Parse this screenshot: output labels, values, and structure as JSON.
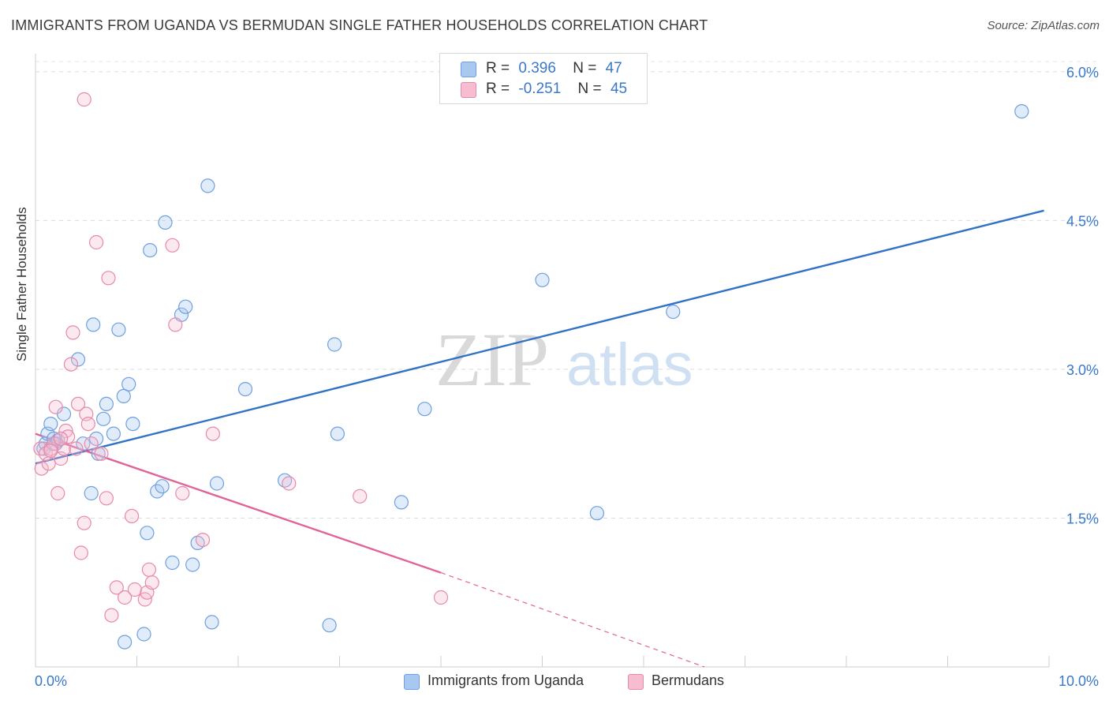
{
  "title": "IMMIGRANTS FROM UGANDA VS BERMUDAN SINGLE FATHER HOUSEHOLDS CORRELATION CHART",
  "source": "Source: ZipAtlas.com",
  "watermark": {
    "zip": "ZIP",
    "atlas": "atlas"
  },
  "legend_top": {
    "rows": [
      {
        "r_label": "R =",
        "r_value": "0.396",
        "n_label": "N =",
        "n_value": "47",
        "color": "#a9c8f0",
        "border": "#6f9fdc"
      },
      {
        "r_label": "R =",
        "r_value": "-0.251",
        "n_label": "N =",
        "n_value": "45",
        "color": "#f6bdd0",
        "border": "#e58aab"
      }
    ]
  },
  "legend_bottom": [
    {
      "label": "Immigrants from Uganda",
      "color": "#a9c8f0",
      "border": "#6f9fdc"
    },
    {
      "label": "Bermudans",
      "color": "#f6bdd0",
      "border": "#e58aab"
    }
  ],
  "chart_data": {
    "type": "scatter",
    "title": "IMMIGRANTS FROM UGANDA VS BERMUDAN SINGLE FATHER HOUSEHOLDS CORRELATION CHART",
    "xlabel": "",
    "ylabel": "Single Father Households",
    "xlim": [
      0,
      10
    ],
    "ylim": [
      0,
      6.15
    ],
    "x_tick_labels": [
      "0.0%",
      "10.0%"
    ],
    "y_tick_labels": [
      "1.5%",
      "3.0%",
      "4.5%",
      "6.0%"
    ],
    "y_ticks": [
      1.5,
      3.0,
      4.5,
      6.0
    ],
    "grid": true,
    "legend_position": "top-center",
    "series": [
      {
        "name": "Immigrants from Uganda",
        "color": "#6f9fdc",
        "fill": "rgba(169,200,240,0.35)",
        "line_color": "#2f72c8",
        "trend": [
          [
            0.0,
            2.05
          ],
          [
            9.95,
            4.6
          ]
        ],
        "points": [
          [
            0.08,
            2.2
          ],
          [
            0.1,
            2.25
          ],
          [
            0.12,
            2.35
          ],
          [
            0.15,
            2.45
          ],
          [
            0.18,
            2.3
          ],
          [
            0.2,
            2.25
          ],
          [
            0.22,
            2.28
          ],
          [
            0.28,
            2.55
          ],
          [
            0.42,
            3.1
          ],
          [
            0.47,
            2.25
          ],
          [
            0.55,
            1.75
          ],
          [
            0.57,
            3.45
          ],
          [
            0.6,
            2.3
          ],
          [
            0.62,
            2.15
          ],
          [
            0.67,
            2.5
          ],
          [
            0.7,
            2.65
          ],
          [
            0.77,
            2.35
          ],
          [
            0.82,
            3.4
          ],
          [
            0.87,
            2.73
          ],
          [
            0.92,
            2.85
          ],
          [
            0.96,
            2.45
          ],
          [
            0.88,
            0.25
          ],
          [
            1.07,
            0.33
          ],
          [
            1.1,
            1.35
          ],
          [
            1.13,
            4.2
          ],
          [
            1.2,
            1.77
          ],
          [
            1.25,
            1.82
          ],
          [
            1.28,
            4.48
          ],
          [
            1.35,
            1.05
          ],
          [
            1.44,
            3.55
          ],
          [
            1.48,
            3.63
          ],
          [
            1.55,
            1.03
          ],
          [
            1.6,
            1.25
          ],
          [
            1.7,
            4.85
          ],
          [
            1.74,
            0.45
          ],
          [
            1.79,
            1.85
          ],
          [
            2.07,
            2.8
          ],
          [
            2.46,
            1.88
          ],
          [
            2.9,
            0.42
          ],
          [
            2.95,
            3.25
          ],
          [
            2.98,
            2.35
          ],
          [
            3.61,
            1.66
          ],
          [
            3.84,
            2.6
          ],
          [
            5.0,
            3.9
          ],
          [
            5.54,
            1.55
          ],
          [
            6.29,
            3.58
          ],
          [
            9.73,
            5.6
          ]
        ]
      },
      {
        "name": "Bermudans",
        "color": "#e58aab",
        "fill": "rgba(246,189,208,0.35)",
        "line_color": "#e0649a",
        "trend": [
          [
            0.0,
            2.35
          ],
          [
            4.0,
            0.95
          ]
        ],
        "trend_dashed": [
          [
            4.0,
            0.95
          ],
          [
            6.6,
            0.0
          ]
        ],
        "points": [
          [
            0.05,
            2.2
          ],
          [
            0.06,
            2.0
          ],
          [
            0.1,
            2.15
          ],
          [
            0.13,
            2.05
          ],
          [
            0.15,
            2.2
          ],
          [
            0.18,
            2.25
          ],
          [
            0.2,
            2.62
          ],
          [
            0.22,
            1.75
          ],
          [
            0.25,
            2.1
          ],
          [
            0.28,
            2.2
          ],
          [
            0.3,
            2.38
          ],
          [
            0.32,
            2.32
          ],
          [
            0.35,
            3.05
          ],
          [
            0.37,
            3.37
          ],
          [
            0.4,
            2.2
          ],
          [
            0.42,
            2.65
          ],
          [
            0.45,
            1.15
          ],
          [
            0.48,
            1.45
          ],
          [
            0.5,
            2.55
          ],
          [
            0.52,
            2.45
          ],
          [
            0.55,
            2.25
          ],
          [
            0.48,
            5.72
          ],
          [
            0.6,
            4.28
          ],
          [
            0.65,
            2.15
          ],
          [
            0.7,
            1.7
          ],
          [
            0.75,
            0.52
          ],
          [
            0.8,
            0.8
          ],
          [
            0.88,
            0.7
          ],
          [
            0.72,
            3.92
          ],
          [
            0.95,
            1.52
          ],
          [
            0.98,
            0.78
          ],
          [
            1.08,
            0.68
          ],
          [
            1.1,
            0.75
          ],
          [
            1.12,
            0.98
          ],
          [
            1.15,
            0.85
          ],
          [
            1.35,
            4.25
          ],
          [
            1.38,
            3.45
          ],
          [
            1.45,
            1.75
          ],
          [
            1.65,
            1.28
          ],
          [
            1.75,
            2.35
          ],
          [
            2.5,
            1.85
          ],
          [
            3.2,
            1.72
          ],
          [
            4.0,
            0.7
          ],
          [
            0.15,
            2.18
          ],
          [
            0.25,
            2.3
          ]
        ]
      }
    ]
  }
}
